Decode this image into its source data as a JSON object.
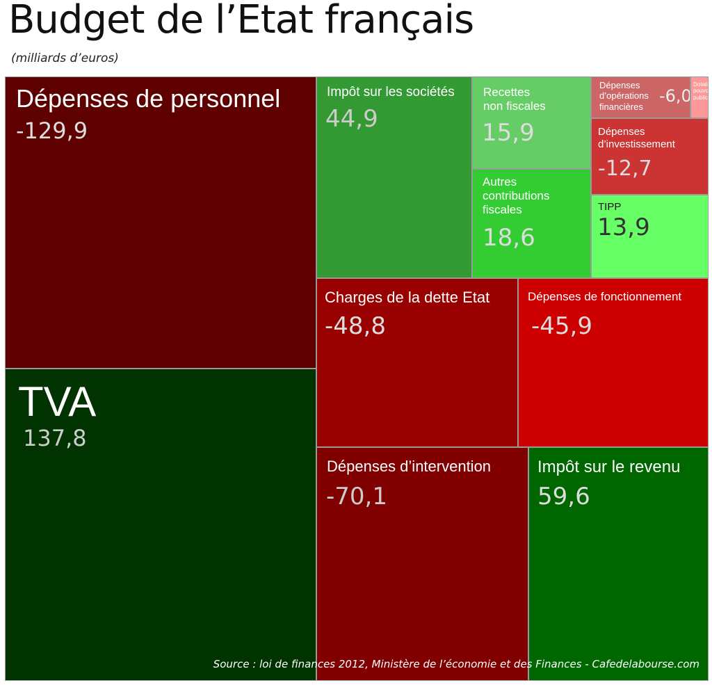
{
  "title": "Budget de l’Etat français",
  "subtitle": "(milliards d’euros)",
  "source": "Source : loi de finances 2012, Ministère de l’économie et des Finances  -  Cafedelabourse.com",
  "chart_data": {
    "type": "treemap",
    "unit": "milliards d’euros",
    "items": [
      {
        "id": "personnel",
        "label": "Dépenses de personnel",
        "value_text": "-129,9",
        "value": -129.9,
        "color": "#5e0000"
      },
      {
        "id": "tva",
        "label": "TVA",
        "value_text": "137,8",
        "value": 137.8,
        "color": "#003300"
      },
      {
        "id": "is",
        "label": "Impôt sur les sociétés",
        "value_text": "44,9",
        "value": 44.9,
        "color": "#339933"
      },
      {
        "id": "recettes-nf",
        "label": "Recettes\nnon fiscales",
        "value_text": "15,9",
        "value": 15.9,
        "color": "#66cc66"
      },
      {
        "id": "autres-cf",
        "label": "Autres\ncontributions\nfiscales",
        "value_text": "18,6",
        "value": 18.6,
        "color": "#33cc33"
      },
      {
        "id": "dep-op-fin",
        "label": "Dépenses\nd’opérations\nfinancières",
        "value_text": "-6,0",
        "value": -6.0,
        "color": "#cc6666"
      },
      {
        "id": "dotations",
        "label": "Dotations\npouvoirs\npublics",
        "value_text": "",
        "value": null,
        "color": "#ff9999"
      },
      {
        "id": "dep-invest",
        "label": "Dépenses\nd’investissement",
        "value_text": "-12,7",
        "value": -12.7,
        "color": "#cc3333"
      },
      {
        "id": "tipp",
        "label": "TIPP",
        "value_text": "13,9",
        "value": 13.9,
        "color": "#66ff66"
      },
      {
        "id": "dette",
        "label": "Charges de la dette Etat",
        "value_text": "-48,8",
        "value": -48.8,
        "color": "#990000"
      },
      {
        "id": "fonct",
        "label": "Dépenses de fonctionnement",
        "value_text": "-45,9",
        "value": -45.9,
        "color": "#cc0000"
      },
      {
        "id": "interv",
        "label": "Dépenses d’intervention",
        "value_text": "-70,1",
        "value": -70.1,
        "color": "#800000"
      },
      {
        "id": "ir",
        "label": "Impôt sur le revenu",
        "value_text": "59,6",
        "value": 59.6,
        "color": "#006600"
      }
    ]
  }
}
